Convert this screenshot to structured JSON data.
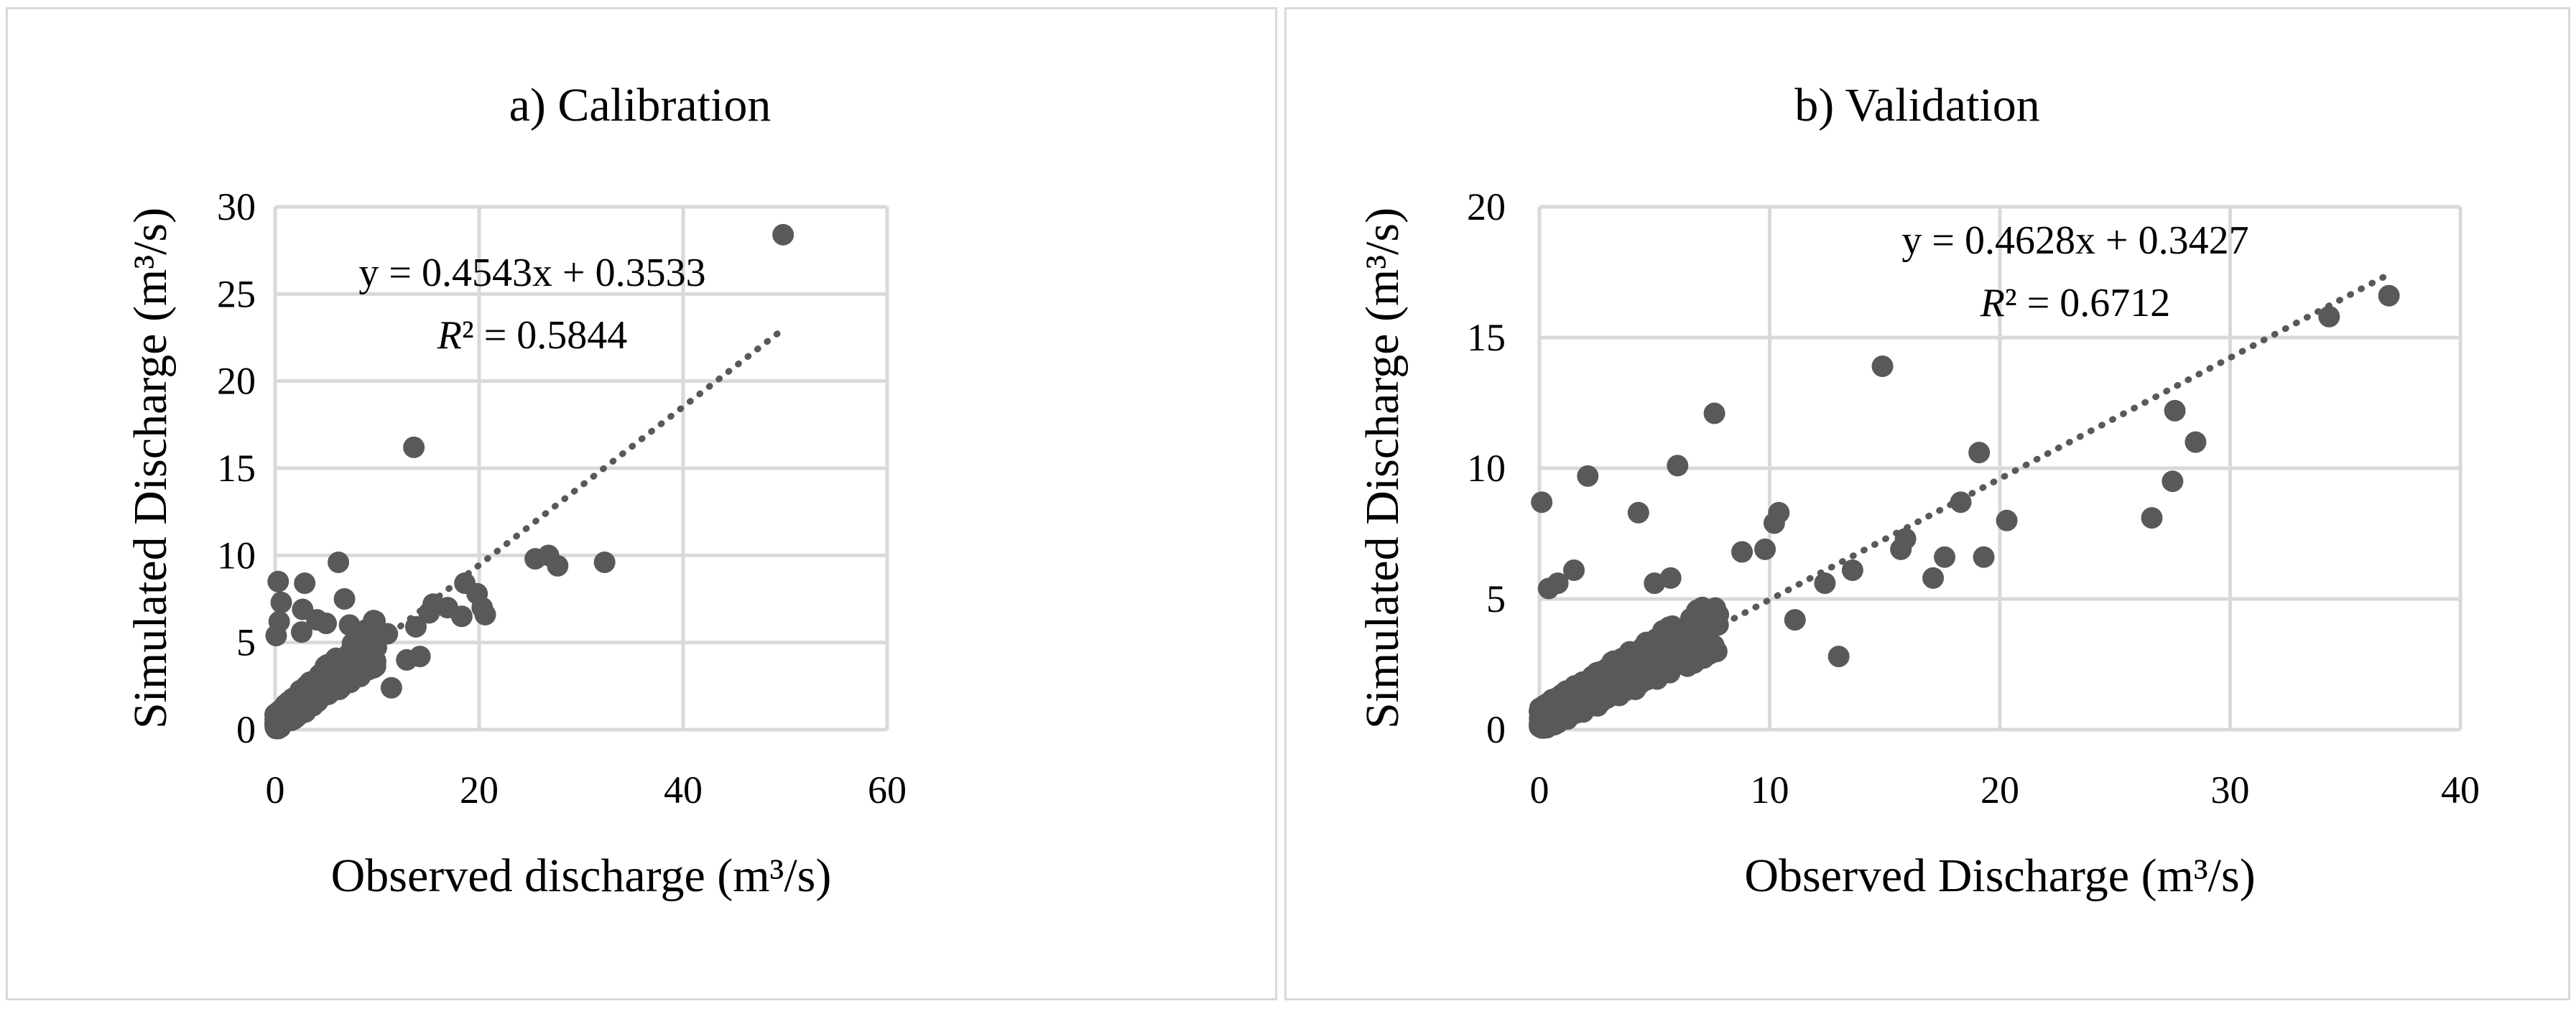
{
  "chart_data": [
    {
      "type": "scatter",
      "title": "a) Calibration",
      "xlabel": "Observed discharge (m³/s)",
      "ylabel": "Simulated Discharge (m³/s)",
      "xlim": [
        0,
        60
      ],
      "ylim": [
        0,
        30
      ],
      "x_ticks": [
        0,
        20,
        40,
        60
      ],
      "y_ticks": [
        0,
        5,
        10,
        15,
        20,
        25,
        30
      ],
      "grid": true,
      "marker_color": "#595959",
      "trendline": {
        "style": "dotted",
        "slope": 0.4543,
        "intercept": 0.3533,
        "x_range": [
          0,
          50
        ],
        "equation": "y = 0.4543x + 0.3533",
        "r2_label": "R",
        "r2_value": "² = 0.5844"
      },
      "notable_points": [
        {
          "x": 49.8,
          "y": 28.4
        },
        {
          "x": 13.6,
          "y": 16.2
        },
        {
          "x": 32.3,
          "y": 9.6
        },
        {
          "x": 27.7,
          "y": 9.4
        },
        {
          "x": 26.8,
          "y": 10.0
        },
        {
          "x": 25.5,
          "y": 9.8
        },
        {
          "x": 20.6,
          "y": 6.6
        },
        {
          "x": 20.3,
          "y": 7.0
        },
        {
          "x": 19.8,
          "y": 7.8
        },
        {
          "x": 18.6,
          "y": 8.4
        },
        {
          "x": 18.3,
          "y": 6.5
        },
        {
          "x": 16.9,
          "y": 7.0
        },
        {
          "x": 15.5,
          "y": 7.2
        },
        {
          "x": 15.1,
          "y": 6.7
        },
        {
          "x": 14.2,
          "y": 4.2
        },
        {
          "x": 13.8,
          "y": 5.9
        },
        {
          "x": 12.9,
          "y": 4.0
        },
        {
          "x": 11.4,
          "y": 2.4
        },
        {
          "x": 11.0,
          "y": 5.5
        },
        {
          "x": 10.2,
          "y": 5.6
        },
        {
          "x": 6.2,
          "y": 9.6
        },
        {
          "x": 6.8,
          "y": 7.5
        },
        {
          "x": 2.9,
          "y": 8.4
        },
        {
          "x": 0.3,
          "y": 8.5
        },
        {
          "x": 0.6,
          "y": 7.3
        },
        {
          "x": 0.4,
          "y": 6.2
        },
        {
          "x": 2.7,
          "y": 6.9
        },
        {
          "x": 4.1,
          "y": 6.3
        },
        {
          "x": 5.0,
          "y": 6.1
        },
        {
          "x": 7.3,
          "y": 6.0
        },
        {
          "x": 2.6,
          "y": 5.6
        },
        {
          "x": 8.5,
          "y": 4.6
        },
        {
          "x": 9.4,
          "y": 5.2
        },
        {
          "x": 0.1,
          "y": 5.4
        }
      ],
      "cluster_seed": 11,
      "cluster_count": 260,
      "cluster_x_max": 10,
      "cluster_spread": 1.6
    },
    {
      "type": "scatter",
      "title": "b) Validation",
      "xlabel": "Observed Discharge (m³/s)",
      "ylabel": "Simulated Discharge (m³/s)",
      "xlim": [
        0,
        40
      ],
      "ylim": [
        0,
        20
      ],
      "x_ticks": [
        0,
        10,
        20,
        30,
        40
      ],
      "y_ticks": [
        0,
        5,
        10,
        15,
        20
      ],
      "grid": true,
      "marker_color": "#595959",
      "trendline": {
        "style": "dotted",
        "slope": 0.4628,
        "intercept": 0.3427,
        "x_range": [
          0,
          37
        ],
        "equation": "y = 0.4628x + 0.3427",
        "r2_label": "R",
        "r2_value": "² = 0.6712"
      },
      "notable_points": [
        {
          "x": 36.9,
          "y": 16.6
        },
        {
          "x": 34.3,
          "y": 15.8
        },
        {
          "x": 28.5,
          "y": 11.0
        },
        {
          "x": 27.6,
          "y": 12.2
        },
        {
          "x": 27.5,
          "y": 9.5
        },
        {
          "x": 26.6,
          "y": 8.1
        },
        {
          "x": 20.3,
          "y": 8.0
        },
        {
          "x": 19.3,
          "y": 6.6
        },
        {
          "x": 19.1,
          "y": 10.6
        },
        {
          "x": 18.3,
          "y": 8.7
        },
        {
          "x": 17.6,
          "y": 6.6
        },
        {
          "x": 17.1,
          "y": 5.8
        },
        {
          "x": 15.9,
          "y": 7.3
        },
        {
          "x": 15.7,
          "y": 6.9
        },
        {
          "x": 14.9,
          "y": 13.9
        },
        {
          "x": 13.0,
          "y": 2.8
        },
        {
          "x": 7.6,
          "y": 12.1
        },
        {
          "x": 6.0,
          "y": 10.1
        },
        {
          "x": 4.3,
          "y": 8.3
        },
        {
          "x": 0.1,
          "y": 8.7
        },
        {
          "x": 2.1,
          "y": 9.7
        },
        {
          "x": 9.8,
          "y": 6.9
        },
        {
          "x": 10.2,
          "y": 7.9
        },
        {
          "x": 10.4,
          "y": 8.3
        },
        {
          "x": 8.8,
          "y": 6.8
        },
        {
          "x": 11.1,
          "y": 4.2
        },
        {
          "x": 12.4,
          "y": 5.6
        },
        {
          "x": 13.6,
          "y": 6.1
        },
        {
          "x": 0.4,
          "y": 5.4
        },
        {
          "x": 0.8,
          "y": 5.6
        },
        {
          "x": 1.5,
          "y": 6.1
        },
        {
          "x": 5.0,
          "y": 5.6
        },
        {
          "x": 5.7,
          "y": 5.8
        },
        {
          "x": 7.2,
          "y": 4.6
        }
      ],
      "cluster_seed": 29,
      "cluster_count": 300,
      "cluster_x_max": 8,
      "cluster_spread": 1.5
    }
  ]
}
